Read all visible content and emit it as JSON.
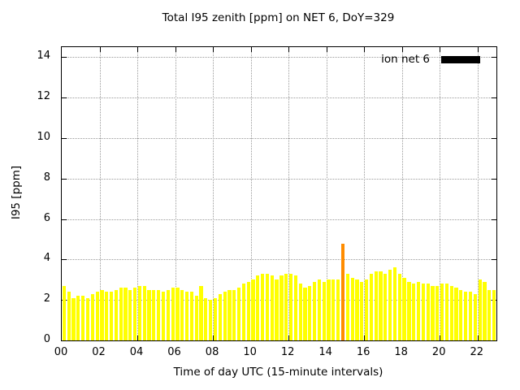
{
  "chart_data": {
    "type": "bar",
    "title": "Total I95 zenith [ppm] on NET 6, DoY=329",
    "xlabel": "Time of day UTC (15-minute intervals)",
    "ylabel": "I95 [ppm]",
    "xlim": [
      0,
      23
    ],
    "ylim": [
      0,
      14.5
    ],
    "xticks": [
      0,
      2,
      4,
      6,
      8,
      10,
      12,
      14,
      16,
      18,
      20,
      22
    ],
    "xtick_labels": [
      "00",
      "02",
      "04",
      "06",
      "08",
      "10",
      "12",
      "14",
      "16",
      "18",
      "20",
      "22"
    ],
    "yticks": [
      0,
      2,
      4,
      6,
      8,
      10,
      12,
      14
    ],
    "grid": true,
    "interval_minutes": 15,
    "start_time": "00:00",
    "values": [
      2.7,
      2.4,
      2.1,
      2.2,
      2.2,
      2.1,
      2.3,
      2.4,
      2.5,
      2.4,
      2.4,
      2.5,
      2.6,
      2.6,
      2.5,
      2.6,
      2.7,
      2.7,
      2.5,
      2.5,
      2.5,
      2.4,
      2.5,
      2.6,
      2.6,
      2.5,
      2.4,
      2.4,
      2.2,
      2.7,
      2.1,
      2.0,
      2.1,
      2.3,
      2.4,
      2.5,
      2.5,
      2.6,
      2.8,
      2.9,
      3.0,
      3.2,
      3.3,
      3.3,
      3.2,
      3.0,
      3.2,
      3.3,
      3.3,
      3.2,
      2.8,
      2.6,
      2.7,
      2.9,
      3.0,
      2.9,
      3.0,
      3.0,
      3.0,
      4.8,
      3.3,
      3.1,
      3.0,
      2.9,
      3.0,
      3.3,
      3.4,
      3.4,
      3.3,
      3.5,
      3.6,
      3.3,
      3.1,
      2.9,
      2.8,
      2.9,
      2.8,
      2.8,
      2.7,
      2.7,
      2.8,
      2.8,
      2.7,
      2.6,
      2.5,
      2.4,
      2.4,
      2.3,
      3.0,
      2.9,
      2.5,
      2.5
    ],
    "bar_color": "#ffff00",
    "highlight_index": 59,
    "highlight_color": "#ff8c00",
    "legend": {
      "label": "ion net 6",
      "swatch_color": "#000000",
      "position": "top-right"
    }
  }
}
